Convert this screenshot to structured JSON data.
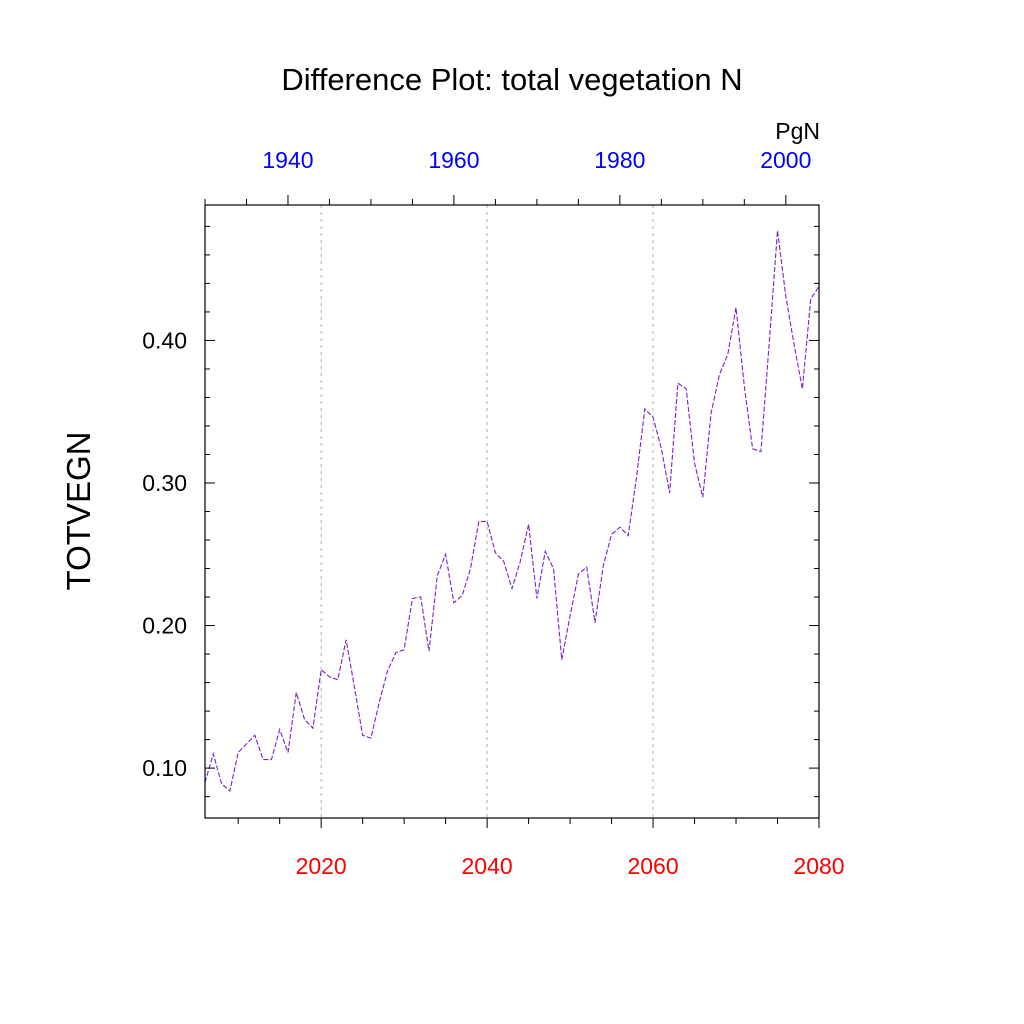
{
  "chart_data": {
    "type": "line",
    "title": "Difference Plot: total vegetation N",
    "units": "PgN",
    "ylabel": "TOTVEGN",
    "ylim": [
      0.065,
      0.495
    ],
    "y_ticks": [
      0.1,
      0.2,
      0.3,
      0.4
    ],
    "y_tick_labels": [
      "0.10",
      "0.20",
      "0.30",
      "0.40"
    ],
    "y_minor_step": 0.02,
    "bottom_axis": {
      "range": [
        2006,
        2080
      ],
      "ticks": [
        2020,
        2040,
        2060,
        2080
      ],
      "tick_labels": [
        "2020",
        "2040",
        "2060",
        "2080"
      ],
      "minor_step": 5,
      "color": "#ff0000"
    },
    "top_axis": {
      "range": [
        1930,
        2004
      ],
      "ticks": [
        1940,
        1960,
        1980,
        2000
      ],
      "tick_labels": [
        "1940",
        "1960",
        "1980",
        "2000"
      ],
      "minor_step": 5,
      "color": "#0000ff"
    },
    "grid": {
      "vertical_at": [
        2020,
        2040,
        2060
      ],
      "style": "dotted"
    },
    "series": [
      {
        "name": "difference",
        "color": "#7a1fcf",
        "x": [
          2006,
          2007,
          2008,
          2009,
          2010,
          2011,
          2012,
          2013,
          2014,
          2015,
          2016,
          2017,
          2018,
          2019,
          2020,
          2021,
          2022,
          2023,
          2024,
          2025,
          2026,
          2027,
          2028,
          2029,
          2030,
          2031,
          2032,
          2033,
          2034,
          2035,
          2036,
          2037,
          2038,
          2039,
          2040,
          2041,
          2042,
          2043,
          2044,
          2045,
          2046,
          2047,
          2048,
          2049,
          2050,
          2051,
          2052,
          2053,
          2054,
          2055,
          2056,
          2057,
          2058,
          2059,
          2060,
          2061,
          2062,
          2063,
          2064,
          2065,
          2066,
          2067,
          2068,
          2069,
          2070,
          2071,
          2072,
          2073,
          2074,
          2075,
          2076,
          2077,
          2078,
          2079,
          2080
        ],
        "values": [
          0.09,
          0.11,
          0.089,
          0.084,
          0.111,
          0.117,
          0.123,
          0.106,
          0.106,
          0.127,
          0.111,
          0.153,
          0.134,
          0.128,
          0.169,
          0.164,
          0.162,
          0.19,
          0.157,
          0.123,
          0.121,
          0.146,
          0.168,
          0.181,
          0.183,
          0.219,
          0.22,
          0.182,
          0.235,
          0.25,
          0.216,
          0.221,
          0.24,
          0.273,
          0.273,
          0.251,
          0.245,
          0.226,
          0.245,
          0.271,
          0.219,
          0.252,
          0.24,
          0.176,
          0.207,
          0.236,
          0.241,
          0.202,
          0.242,
          0.264,
          0.269,
          0.263,
          0.304,
          0.352,
          0.346,
          0.324,
          0.293,
          0.37,
          0.366,
          0.314,
          0.29,
          0.349,
          0.376,
          0.39,
          0.423,
          0.368,
          0.324,
          0.322,
          0.398,
          0.477,
          0.431,
          0.397,
          0.366,
          0.429,
          0.438
        ]
      }
    ]
  }
}
